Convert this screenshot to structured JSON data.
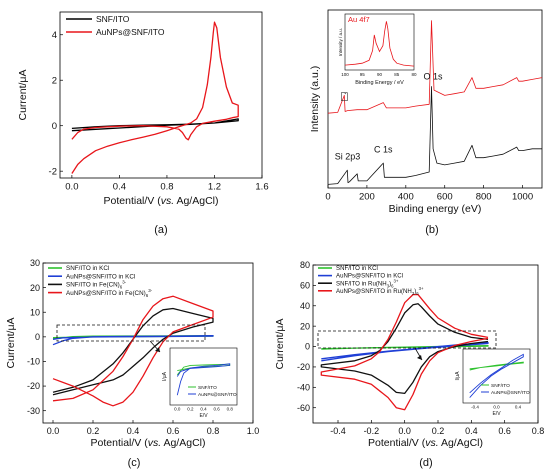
{
  "figure": {
    "panel_labels": [
      "(a)",
      "(b)",
      "(c)",
      "(d)"
    ]
  },
  "chart_data": [
    {
      "id": "a",
      "type": "line",
      "title": "",
      "xlabel_main": "Potential/V (",
      "xlabel_italic": "vs.",
      "xlabel_tail": " Ag/AgCl)",
      "ylabel": "Current/μA",
      "xlim": [
        -0.1,
        1.6
      ],
      "ylim": [
        -2.3,
        5.0
      ],
      "xticks": [
        0.0,
        0.4,
        0.8,
        1.2,
        1.6
      ],
      "xtick_labels": [
        "0.0",
        "0.4",
        "0.8",
        "1.2",
        "1.6"
      ],
      "yticks": [
        -2,
        0,
        2,
        4
      ],
      "ytick_labels": [
        "-2",
        "0",
        "2",
        "4"
      ],
      "legend_position": "top-left",
      "series": [
        {
          "name": "SNF/ITO",
          "color": "#000000",
          "x": [
            0.0,
            0.2,
            0.4,
            0.6,
            0.8,
            1.0,
            1.2,
            1.4,
            1.4,
            1.2,
            1.0,
            0.8,
            0.6,
            0.4,
            0.2,
            0.0
          ],
          "y": [
            -0.12,
            -0.05,
            0.0,
            0.02,
            0.04,
            0.07,
            0.12,
            0.3,
            0.22,
            0.12,
            0.06,
            0.02,
            -0.04,
            -0.1,
            -0.16,
            -0.22
          ]
        },
        {
          "name": "AuNPs@SNF/ITO",
          "color": "#e8161b",
          "x": [
            0.0,
            0.05,
            0.1,
            0.2,
            0.3,
            0.4,
            0.5,
            0.6,
            0.7,
            0.8,
            0.9,
            1.0,
            1.05,
            1.1,
            1.14,
            1.17,
            1.19,
            1.2,
            1.22,
            1.25,
            1.3,
            1.35,
            1.4,
            1.4,
            1.35,
            1.3,
            1.2,
            1.1,
            1.05,
            1.0,
            0.98,
            0.96,
            0.93,
            0.9,
            0.8,
            0.6,
            0.4,
            0.2,
            0.1,
            0.05,
            0.0
          ],
          "y": [
            -2.1,
            -1.7,
            -1.45,
            -1.1,
            -0.9,
            -0.75,
            -0.62,
            -0.5,
            -0.38,
            -0.22,
            -0.05,
            0.12,
            0.3,
            0.8,
            1.8,
            3.0,
            4.1,
            4.55,
            4.3,
            3.0,
            1.7,
            1.0,
            0.9,
            0.4,
            0.35,
            0.28,
            0.2,
            0.1,
            -0.05,
            -0.4,
            -0.62,
            -0.55,
            -0.3,
            -0.15,
            -0.05,
            0.0,
            -0.02,
            -0.08,
            -0.15,
            -0.3,
            -0.6
          ]
        }
      ]
    },
    {
      "id": "b",
      "type": "line",
      "title": "",
      "xlabel": "Binding energy (eV)",
      "ylabel": "Intensity (a.u.)",
      "xlim": [
        0,
        1100
      ],
      "ylim": [
        0,
        100
      ],
      "xticks": [
        0,
        200,
        400,
        600,
        800,
        1000
      ],
      "xtick_labels": [
        "0",
        "200",
        "400",
        "600",
        "800",
        "1000"
      ],
      "annotations": [
        "Si 2p3",
        "C 1s",
        "O 1s"
      ],
      "series": [
        {
          "color": "#e8161b",
          "x": [
            0,
            50,
            84,
            88,
            100,
            150,
            200,
            284,
            300,
            350,
            400,
            450,
            520,
            532,
            545,
            600,
            650,
            700,
            740,
            760,
            800,
            850,
            900,
            970,
            980,
            1000,
            1050,
            1100
          ],
          "y": [
            42,
            42.5,
            52,
            43,
            43.5,
            44,
            44,
            48,
            45,
            45,
            45,
            46,
            47,
            94,
            55,
            52,
            53,
            54,
            62,
            56,
            56,
            57,
            58,
            62,
            60,
            60,
            61,
            62
          ]
        },
        {
          "color": "#111111",
          "x": [
            0,
            50,
            99,
            103,
            110,
            150,
            155,
            160,
            200,
            284,
            290,
            350,
            400,
            450,
            520,
            532,
            540,
            560,
            600,
            650,
            700,
            740,
            760,
            800,
            850,
            900,
            970,
            980,
            1000,
            1050,
            1100
          ],
          "y": [
            2,
            2.5,
            10,
            3,
            3.5,
            8,
            4,
            4,
            4,
            14,
            6,
            6,
            6,
            7,
            9,
            57,
            22,
            14,
            13,
            14,
            15,
            24,
            17,
            17,
            18,
            19,
            23,
            21,
            21,
            22,
            22
          ]
        }
      ],
      "inset": {
        "title": "Au 4f7",
        "xlabel": "Binding Energy / eV",
        "ylabel": "Intensity / a.u.",
        "xlim": [
          100,
          80
        ],
        "xticks": [
          100,
          95,
          90,
          85,
          80
        ],
        "xtick_labels": [
          "100",
          "95",
          "90",
          "85",
          "80"
        ],
        "series": [
          {
            "color": "#e8161b",
            "x": [
              100,
              97,
              95,
              93,
              92,
              91.5,
              91,
              90,
              89,
              88.5,
              88,
              87.6,
              87,
              86,
              85,
              83,
              80
            ],
            "y": [
              10,
              12,
              14,
              20,
              40,
              72,
              55,
              38,
              50,
              80,
              100,
              85,
              45,
              22,
              14,
              10,
              8
            ]
          }
        ]
      }
    },
    {
      "id": "c",
      "type": "line",
      "title": "",
      "xlabel_main": "Potential/V (",
      "xlabel_italic": "vs.",
      "xlabel_tail": " Ag/AgCl)",
      "ylabel": "Current/μA",
      "xlim": [
        -0.05,
        1.0
      ],
      "ylim": [
        -35,
        30
      ],
      "xticks": [
        0.0,
        0.2,
        0.4,
        0.6,
        0.8,
        1.0
      ],
      "xtick_labels": [
        "0.0",
        "0.2",
        "0.4",
        "0.6",
        "0.8",
        "1.0"
      ],
      "yticks": [
        -30,
        -20,
        -10,
        0,
        10,
        20,
        30
      ],
      "ytick_labels": [
        "-30",
        "-20",
        "-10",
        "0",
        "10",
        "20",
        "30"
      ],
      "legend_position": "top-left",
      "series": [
        {
          "name": "SNF/ITO in KCl",
          "color": "#2ec22e",
          "x": [
            0.0,
            0.1,
            0.2,
            0.4,
            0.6,
            0.8,
            0.8,
            0.6,
            0.4,
            0.2,
            0.0
          ],
          "y": [
            -0.8,
            0.1,
            0.3,
            0.35,
            0.4,
            0.45,
            0.3,
            0.2,
            0.1,
            0.0,
            -0.3
          ]
        },
        {
          "name": "AuNPs@SNF/ITO in KCl",
          "color": "#1f3fd6",
          "x": [
            0.0,
            0.05,
            0.1,
            0.2,
            0.4,
            0.6,
            0.8,
            0.8,
            0.6,
            0.4,
            0.2,
            0.05,
            0.0
          ],
          "y": [
            -3.2,
            -1.6,
            -0.6,
            0.0,
            0.2,
            0.3,
            0.5,
            0.3,
            0.15,
            0.05,
            -0.05,
            -0.4,
            -1.0
          ]
        },
        {
          "name": "SNF/ITO in Fe(CN)6 3-",
          "color": "#111111",
          "x": [
            0.0,
            0.1,
            0.2,
            0.3,
            0.35,
            0.4,
            0.45,
            0.5,
            0.55,
            0.6,
            0.7,
            0.8,
            0.8,
            0.7,
            0.6,
            0.55,
            0.5,
            0.45,
            0.4,
            0.35,
            0.3,
            0.25,
            0.2,
            0.1,
            0.0
          ],
          "y": [
            -22.5,
            -20.5,
            -17.5,
            -11.0,
            -6.5,
            -1.0,
            4.5,
            8.5,
            11.0,
            11.5,
            9.5,
            7.5,
            6.0,
            4.0,
            1.5,
            -1.0,
            -4.5,
            -8.5,
            -12.0,
            -15.5,
            -17.5,
            -18.5,
            -19.5,
            -21.5,
            -23.5
          ]
        },
        {
          "name": "AuNPs@SNF/ITO in Fe(CN)6 3-",
          "color": "#e8161b",
          "x": [
            0.0,
            0.1,
            0.2,
            0.3,
            0.35,
            0.4,
            0.45,
            0.5,
            0.55,
            0.6,
            0.7,
            0.8,
            0.8,
            0.7,
            0.6,
            0.55,
            0.5,
            0.45,
            0.4,
            0.35,
            0.3,
            0.25,
            0.2,
            0.1,
            0.0
          ],
          "y": [
            -26.0,
            -25.0,
            -21.5,
            -14.0,
            -8.0,
            -1.0,
            7.0,
            12.5,
            15.5,
            16.5,
            13.5,
            10.5,
            8.0,
            5.0,
            2.0,
            -2.0,
            -8.5,
            -16.0,
            -22.5,
            -26.5,
            -28.0,
            -26.5,
            -24.0,
            -20.0,
            -17.0
          ]
        }
      ],
      "inset": {
        "xlabel": "E/V",
        "ylabel": "I/μA",
        "xticks": [
          0.0,
          0.2,
          0.4,
          0.6,
          0.8
        ],
        "xtick_labels": [
          "0.0",
          "0.2",
          "0.4",
          "0.6",
          "0.8"
        ],
        "legend": [
          "SNF/ITO",
          "AuNPs@SNF/ITO"
        ]
      }
    },
    {
      "id": "d",
      "type": "line",
      "title": "",
      "xlabel_main": "Potential/V (",
      "xlabel_italic": "vs.",
      "xlabel_tail": " Ag/AgCl)",
      "ylabel": "Current/μA",
      "xlim": [
        -0.55,
        0.8
      ],
      "ylim": [
        -75,
        80
      ],
      "xticks": [
        -0.4,
        -0.2,
        0.0,
        0.2,
        0.4,
        0.6,
        0.8
      ],
      "xtick_labels": [
        "-0.4",
        "-0.2",
        "0.0",
        "0.2",
        "0.4",
        "0.6",
        "0.8"
      ],
      "yticks": [
        -60,
        -40,
        -20,
        0,
        20,
        40,
        60,
        80
      ],
      "ytick_labels": [
        "-60",
        "-40",
        "-20",
        "0",
        "20",
        "40",
        "60",
        "80"
      ],
      "legend_position": "top-left",
      "series": [
        {
          "name": "SNF/ITO in KCl",
          "color": "#2ec22e",
          "x": [
            -0.5,
            -0.3,
            0.0,
            0.2,
            0.5,
            0.5,
            0.2,
            0.0,
            -0.3,
            -0.5
          ],
          "y": [
            -2.5,
            -1.5,
            -0.5,
            0.0,
            0.8,
            0.4,
            -0.2,
            -0.8,
            -1.5,
            -2.0
          ]
        },
        {
          "name": "AuNPs@SNF/ITO in KCl",
          "color": "#1f3fd6",
          "x": [
            -0.5,
            -0.3,
            -0.1,
            0.1,
            0.3,
            0.5,
            0.5,
            0.3,
            0.1,
            -0.1,
            -0.3,
            -0.5
          ],
          "y": [
            -14.0,
            -9.0,
            -5.0,
            -2.0,
            0.5,
            3.0,
            4.0,
            1.5,
            -1.5,
            -4.5,
            -8.0,
            -12.0
          ]
        },
        {
          "name": "SNF/ITO in Ru(NH3)6 3+",
          "color": "#111111",
          "x": [
            0.5,
            0.4,
            0.3,
            0.2,
            0.15,
            0.1,
            0.05,
            0.0,
            -0.05,
            -0.1,
            -0.2,
            -0.3,
            -0.5,
            -0.5,
            -0.3,
            -0.2,
            -0.15,
            -0.1,
            -0.05,
            0.0,
            0.05,
            0.08,
            0.1,
            0.15,
            0.2,
            0.3,
            0.4,
            0.5
          ],
          "y": [
            5.0,
            3.0,
            0.0,
            -5.0,
            -10.0,
            -20.0,
            -35.0,
            -46.0,
            -45.0,
            -38.0,
            -28.0,
            -24.0,
            -20.0,
            -18.0,
            -14.0,
            -9.0,
            -4.0,
            5.0,
            18.0,
            33.0,
            41.0,
            42.0,
            39.0,
            30.0,
            22.0,
            14.0,
            9.0,
            7.0
          ]
        },
        {
          "name": "AuNPs@SNF/ITO in Ru(NH3)6 3+",
          "color": "#e8161b",
          "x": [
            0.5,
            0.4,
            0.3,
            0.2,
            0.15,
            0.1,
            0.05,
            0.0,
            -0.05,
            -0.1,
            -0.2,
            -0.3,
            -0.5,
            -0.5,
            -0.3,
            -0.2,
            -0.15,
            -0.1,
            -0.05,
            0.0,
            0.05,
            0.08,
            0.1,
            0.15,
            0.2,
            0.3,
            0.4,
            0.5
          ],
          "y": [
            8.0,
            5.0,
            1.0,
            -6.0,
            -14.0,
            -27.0,
            -47.0,
            -62.0,
            -60.0,
            -50.0,
            -37.0,
            -32.0,
            -28.0,
            -25.0,
            -19.0,
            -12.0,
            -5.0,
            7.0,
            24.0,
            43.0,
            51.0,
            51.0,
            47.0,
            37.0,
            28.0,
            18.0,
            12.0,
            9.0
          ]
        }
      ],
      "inset": {
        "xlabel": "E/V",
        "ylabel": "I/μA",
        "xticks": [
          -0.4,
          0.0,
          0.4
        ],
        "xtick_labels": [
          "-0.4",
          "0.0",
          "0.4"
        ],
        "legend": [
          "SNF/ITO",
          "AuNPs@SNF/ITO"
        ]
      }
    }
  ]
}
